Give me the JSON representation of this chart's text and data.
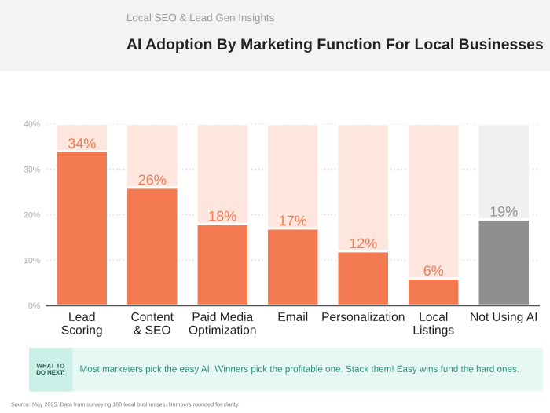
{
  "chart_data": {
    "type": "bar",
    "title": "AI Adoption By Marketing Function For Local Businesses",
    "subtitle": "Local SEO & Lead Gen Insights",
    "categories": [
      "Lead\nScoring",
      "Content\n& SEO",
      "Paid Media\nOptimization",
      "Email",
      "Personalization",
      "Local\nListings",
      "Not Using AI"
    ],
    "stacked": true,
    "series": [
      {
        "values": [
          34,
          26,
          18,
          17,
          12,
          6,
          19
        ],
        "colors": [
          "#f47a52",
          "#f47a52",
          "#f47a52",
          "#f47a52",
          "#f47a52",
          "#f47a52",
          "#8f8f8f"
        ],
        "value_labels": [
          "34%",
          "26%",
          "18%",
          "17%",
          "12%",
          "6%",
          "19%"
        ]
      },
      {
        "values": [
          6,
          14,
          22,
          23,
          28,
          34,
          21
        ],
        "colors": [
          "#fce6dd",
          "#fce6dd",
          "#fce6dd",
          "#fce6dd",
          "#fce6dd",
          "#fce6dd",
          "#f0f0f0"
        ]
      }
    ],
    "ylim": [
      0,
      40
    ],
    "yticks": [
      {
        "value": 0,
        "label": "0%"
      },
      {
        "value": 10,
        "label": "10%"
      },
      {
        "value": 20,
        "label": "20%"
      },
      {
        "value": 30,
        "label": "30%"
      },
      {
        "value": 40,
        "label": "40%"
      }
    ],
    "grid": "y",
    "legend": false,
    "annotations": [
      "WHAT TO\nDO NEXT:",
      "Most marketers pick the easy AI. Winners pick the profitable one. Stack them! Easy wins fund the hard ones.",
      "Source: May 2025. Data from surveying 180 local businesses. Numbers rounded for clarity."
    ]
  }
}
